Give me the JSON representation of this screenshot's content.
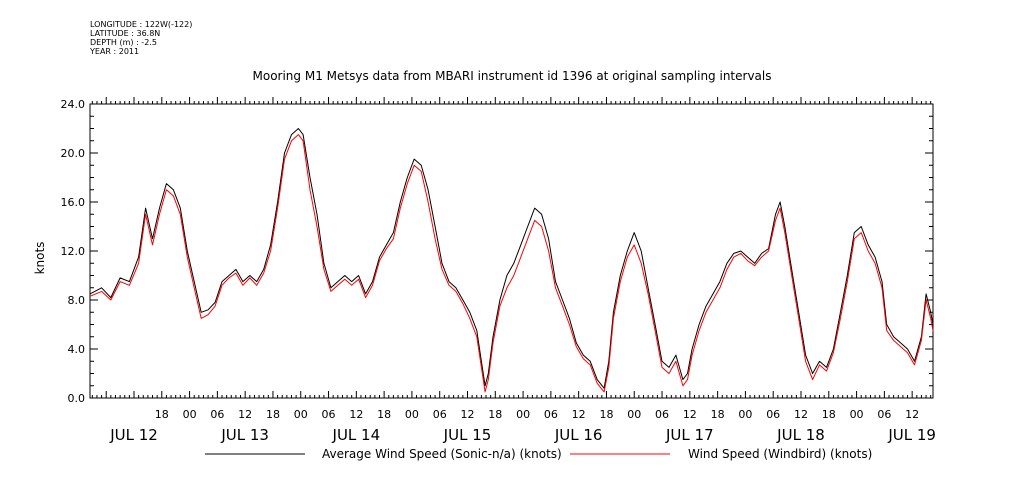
{
  "header": {
    "longitude": "LONGITUDE : 122W(-122)",
    "latitude": "LATITUDE : 36.8N",
    "depth": "DEPTH (m) : -2.5",
    "year": "YEAR : 2011"
  },
  "chart_data": {
    "type": "line",
    "title": "Mooring M1 Metsys data from MBARI instrument id 1396 at original sampling intervals",
    "ylabel": "knots",
    "xlabel": "",
    "ylim": [
      0,
      24
    ],
    "yticks": [
      "0.0",
      "4.0",
      "8.0",
      "12.0",
      "16.0",
      "20.0",
      "24.0"
    ],
    "xlim_hours": [
      -9.5,
      172.5
    ],
    "hour_ticks": [
      {
        "h": 6,
        "label": "18"
      },
      {
        "h": 12,
        "label": "00"
      },
      {
        "h": 18,
        "label": "06"
      },
      {
        "h": 24,
        "label": "12"
      },
      {
        "h": 30,
        "label": "18"
      },
      {
        "h": 36,
        "label": "00"
      },
      {
        "h": 42,
        "label": "06"
      },
      {
        "h": 48,
        "label": "12"
      },
      {
        "h": 54,
        "label": "18"
      },
      {
        "h": 60,
        "label": "00"
      },
      {
        "h": 66,
        "label": "06"
      },
      {
        "h": 72,
        "label": "12"
      },
      {
        "h": 78,
        "label": "18"
      },
      {
        "h": 84,
        "label": "00"
      },
      {
        "h": 90,
        "label": "06"
      },
      {
        "h": 96,
        "label": "12"
      },
      {
        "h": 102,
        "label": "18"
      },
      {
        "h": 108,
        "label": "00"
      },
      {
        "h": 114,
        "label": "06"
      },
      {
        "h": 120,
        "label": "12"
      },
      {
        "h": 126,
        "label": "18"
      },
      {
        "h": 132,
        "label": "00"
      },
      {
        "h": 138,
        "label": "06"
      },
      {
        "h": 144,
        "label": "12"
      },
      {
        "h": 150,
        "label": "18"
      },
      {
        "h": 156,
        "label": "00"
      },
      {
        "h": 162,
        "label": "06"
      },
      {
        "h": 168,
        "label": "12"
      }
    ],
    "date_labels": [
      {
        "h": 0,
        "label": "JUL 12"
      },
      {
        "h": 24,
        "label": "JUL 13"
      },
      {
        "h": 48,
        "label": "JUL 14"
      },
      {
        "h": 72,
        "label": "JUL 15"
      },
      {
        "h": 96,
        "label": "JUL 16"
      },
      {
        "h": 120,
        "label": "JUL 17"
      },
      {
        "h": 144,
        "label": "JUL 18"
      },
      {
        "h": 168,
        "label": "JUL 19"
      }
    ],
    "legend_position": "bottom",
    "series": [
      {
        "name": "Average Wind Speed (Sonic-n/a) (knots)",
        "color": "#000000",
        "points": [
          [
            -9.5,
            8.5
          ],
          [
            -7,
            9
          ],
          [
            -5,
            8.2
          ],
          [
            -3,
            9.8
          ],
          [
            -1,
            9.5
          ],
          [
            1,
            11.5
          ],
          [
            2.5,
            15.5
          ],
          [
            4,
            13
          ],
          [
            5.5,
            15.5
          ],
          [
            7,
            17.5
          ],
          [
            8.5,
            17
          ],
          [
            10,
            15.5
          ],
          [
            11.5,
            12
          ],
          [
            13,
            9.5
          ],
          [
            14.5,
            7
          ],
          [
            16,
            7.2
          ],
          [
            17.5,
            7.8
          ],
          [
            19,
            9.5
          ],
          [
            20.5,
            10
          ],
          [
            22,
            10.5
          ],
          [
            23.5,
            9.5
          ],
          [
            25,
            10
          ],
          [
            26.5,
            9.5
          ],
          [
            28,
            10.5
          ],
          [
            29.5,
            12.5
          ],
          [
            31,
            16
          ],
          [
            32.5,
            20
          ],
          [
            34,
            21.5
          ],
          [
            35.5,
            22
          ],
          [
            36.5,
            21.5
          ],
          [
            38,
            18
          ],
          [
            39.5,
            15
          ],
          [
            41,
            11
          ],
          [
            42.5,
            9
          ],
          [
            44,
            9.5
          ],
          [
            45.5,
            10
          ],
          [
            47,
            9.5
          ],
          [
            48.5,
            10
          ],
          [
            50,
            8.5
          ],
          [
            51.5,
            9.5
          ],
          [
            53,
            11.5
          ],
          [
            54.5,
            12.5
          ],
          [
            56,
            13.5
          ],
          [
            57.5,
            16
          ],
          [
            59,
            18
          ],
          [
            60.5,
            19.5
          ],
          [
            62,
            19
          ],
          [
            63.5,
            17
          ],
          [
            65,
            14
          ],
          [
            66.5,
            11
          ],
          [
            68,
            9.5
          ],
          [
            69.5,
            9
          ],
          [
            71,
            8
          ],
          [
            72.5,
            7
          ],
          [
            74,
            5.5
          ],
          [
            75,
            3
          ],
          [
            75.8,
            1
          ],
          [
            76.5,
            2
          ],
          [
            77.5,
            5
          ],
          [
            79,
            8
          ],
          [
            80.5,
            10
          ],
          [
            82,
            11
          ],
          [
            83.5,
            12.5
          ],
          [
            85,
            14
          ],
          [
            86.5,
            15.5
          ],
          [
            88,
            15
          ],
          [
            89.5,
            13
          ],
          [
            91,
            9.5
          ],
          [
            92.5,
            8
          ],
          [
            94,
            6.5
          ],
          [
            95.5,
            4.5
          ],
          [
            97,
            3.5
          ],
          [
            98.5,
            3
          ],
          [
            100,
            1.5
          ],
          [
            101.5,
            0.8
          ],
          [
            102.5,
            3
          ],
          [
            103.5,
            7
          ],
          [
            105,
            10
          ],
          [
            106.5,
            12
          ],
          [
            108,
            13.5
          ],
          [
            109.5,
            12
          ],
          [
            111,
            9
          ],
          [
            112.5,
            6
          ],
          [
            114,
            3
          ],
          [
            115.5,
            2.5
          ],
          [
            117,
            3.5
          ],
          [
            118.5,
            1.5
          ],
          [
            119.5,
            2
          ],
          [
            120.5,
            4
          ],
          [
            122,
            6
          ],
          [
            123.5,
            7.5
          ],
          [
            125,
            8.5
          ],
          [
            126.5,
            9.5
          ],
          [
            128,
            11
          ],
          [
            129.5,
            11.8
          ],
          [
            131,
            12
          ],
          [
            132.5,
            11.5
          ],
          [
            134,
            11
          ],
          [
            135.5,
            11.8
          ],
          [
            137,
            12.2
          ],
          [
            138.5,
            15
          ],
          [
            139.5,
            16
          ],
          [
            140.5,
            14
          ],
          [
            142,
            10.5
          ],
          [
            143.5,
            7
          ],
          [
            145,
            3.5
          ],
          [
            146.5,
            2
          ],
          [
            148,
            3
          ],
          [
            149.5,
            2.5
          ],
          [
            151,
            4
          ],
          [
            152.5,
            7
          ],
          [
            154,
            10
          ],
          [
            155.5,
            13.5
          ],
          [
            157,
            14
          ],
          [
            158.5,
            12.5
          ],
          [
            160,
            11.5
          ],
          [
            161.5,
            9.5
          ],
          [
            162.5,
            6
          ],
          [
            164,
            5
          ],
          [
            165.5,
            4.5
          ],
          [
            167,
            4
          ],
          [
            168.5,
            3
          ],
          [
            170,
            5
          ],
          [
            171,
            8.5
          ],
          [
            172,
            7
          ],
          [
            172.5,
            6
          ]
        ]
      },
      {
        "name": "Wind Speed (Windbird) (knots)",
        "color": "#ff0000",
        "points": [
          [
            -9.5,
            8.3
          ],
          [
            -7,
            8.7
          ],
          [
            -5,
            8
          ],
          [
            -3,
            9.5
          ],
          [
            -1,
            9.2
          ],
          [
            1,
            11
          ],
          [
            2.5,
            15
          ],
          [
            4,
            12.5
          ],
          [
            5.5,
            15
          ],
          [
            7,
            17
          ],
          [
            8.5,
            16.5
          ],
          [
            10,
            15
          ],
          [
            11.5,
            11.5
          ],
          [
            13,
            9
          ],
          [
            14.5,
            6.5
          ],
          [
            16,
            6.8
          ],
          [
            17.5,
            7.5
          ],
          [
            19,
            9.2
          ],
          [
            20.5,
            9.8
          ],
          [
            22,
            10.2
          ],
          [
            23.5,
            9.2
          ],
          [
            25,
            9.8
          ],
          [
            26.5,
            9.2
          ],
          [
            28,
            10.2
          ],
          [
            29.5,
            12
          ],
          [
            31,
            15.5
          ],
          [
            32.5,
            19.5
          ],
          [
            34,
            21
          ],
          [
            35.5,
            21.5
          ],
          [
            36.5,
            21
          ],
          [
            38,
            17
          ],
          [
            39.5,
            14
          ],
          [
            41,
            10.5
          ],
          [
            42.5,
            8.7
          ],
          [
            44,
            9.2
          ],
          [
            45.5,
            9.7
          ],
          [
            47,
            9.2
          ],
          [
            48.5,
            9.7
          ],
          [
            50,
            8.2
          ],
          [
            51.5,
            9.2
          ],
          [
            53,
            11.2
          ],
          [
            54.5,
            12.2
          ],
          [
            56,
            13
          ],
          [
            57.5,
            15.5
          ],
          [
            59,
            17.5
          ],
          [
            60.5,
            19
          ],
          [
            62,
            18.5
          ],
          [
            63.5,
            16
          ],
          [
            65,
            13
          ],
          [
            66.5,
            10.5
          ],
          [
            68,
            9.2
          ],
          [
            69.5,
            8.7
          ],
          [
            71,
            7.7
          ],
          [
            72.5,
            6.5
          ],
          [
            74,
            5
          ],
          [
            75,
            2.5
          ],
          [
            75.8,
            0.5
          ],
          [
            76.5,
            1.5
          ],
          [
            77.5,
            4.5
          ],
          [
            79,
            7.5
          ],
          [
            80.5,
            9
          ],
          [
            82,
            10
          ],
          [
            83.5,
            11.5
          ],
          [
            85,
            13
          ],
          [
            86.5,
            14.5
          ],
          [
            88,
            14
          ],
          [
            89.5,
            12
          ],
          [
            91,
            9
          ],
          [
            92.5,
            7.5
          ],
          [
            94,
            6
          ],
          [
            95.5,
            4.2
          ],
          [
            97,
            3.2
          ],
          [
            98.5,
            2.7
          ],
          [
            100,
            1.2
          ],
          [
            101.5,
            0.5
          ],
          [
            102.5,
            2.5
          ],
          [
            103.5,
            6.5
          ],
          [
            105,
            9.5
          ],
          [
            106.5,
            11.5
          ],
          [
            108,
            12.5
          ],
          [
            109.5,
            11
          ],
          [
            111,
            8.5
          ],
          [
            112.5,
            5.5
          ],
          [
            114,
            2.5
          ],
          [
            115.5,
            2
          ],
          [
            117,
            3
          ],
          [
            118.5,
            1
          ],
          [
            119.5,
            1.5
          ],
          [
            120.5,
            3.5
          ],
          [
            122,
            5.5
          ],
          [
            123.5,
            7
          ],
          [
            125,
            8
          ],
          [
            126.5,
            9
          ],
          [
            128,
            10.5
          ],
          [
            129.5,
            11.5
          ],
          [
            131,
            11.8
          ],
          [
            132.5,
            11.2
          ],
          [
            134,
            10.8
          ],
          [
            135.5,
            11.5
          ],
          [
            137,
            12
          ],
          [
            138.5,
            14.5
          ],
          [
            139.5,
            15.5
          ],
          [
            140.5,
            13.5
          ],
          [
            142,
            10
          ],
          [
            143.5,
            6.5
          ],
          [
            145,
            3
          ],
          [
            146.5,
            1.5
          ],
          [
            148,
            2.7
          ],
          [
            149.5,
            2.2
          ],
          [
            151,
            3.7
          ],
          [
            152.5,
            6.5
          ],
          [
            154,
            9.5
          ],
          [
            155.5,
            13
          ],
          [
            157,
            13.5
          ],
          [
            158.5,
            12
          ],
          [
            160,
            11
          ],
          [
            161.5,
            9
          ],
          [
            162.5,
            5.5
          ],
          [
            164,
            4.7
          ],
          [
            165.5,
            4.2
          ],
          [
            167,
            3.7
          ],
          [
            168.5,
            2.7
          ],
          [
            170,
            4.7
          ],
          [
            171,
            8
          ],
          [
            172,
            6.5
          ],
          [
            172.5,
            5.5
          ]
        ]
      }
    ]
  }
}
